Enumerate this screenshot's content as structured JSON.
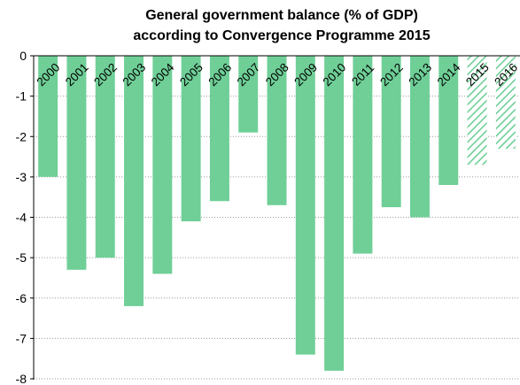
{
  "chart_data": {
    "type": "bar",
    "title": [
      "General government balance (% of GDP)",
      "according to Convergence Programme 2015"
    ],
    "categories": [
      "2000",
      "2001",
      "2002",
      "2003",
      "2004",
      "2005",
      "2006",
      "2007",
      "2008",
      "2009",
      "2010",
      "2011",
      "2012",
      "2013",
      "2014",
      "2015",
      "2016"
    ],
    "values": [
      -3.0,
      -5.3,
      -5.0,
      -6.2,
      -5.4,
      -4.1,
      -3.6,
      -1.9,
      -3.7,
      -7.4,
      -7.8,
      -4.9,
      -3.75,
      -4.0,
      -3.2,
      -2.7,
      -2.3
    ],
    "forecast_from_index": 15,
    "ylim": [
      -8,
      0
    ],
    "yticks": [
      0,
      -1,
      -2,
      -3,
      -4,
      -5,
      -6,
      -7,
      -8
    ],
    "grid": true,
    "colors": {
      "bar": "#6fcf97",
      "hatch": "#6fcf97"
    }
  }
}
